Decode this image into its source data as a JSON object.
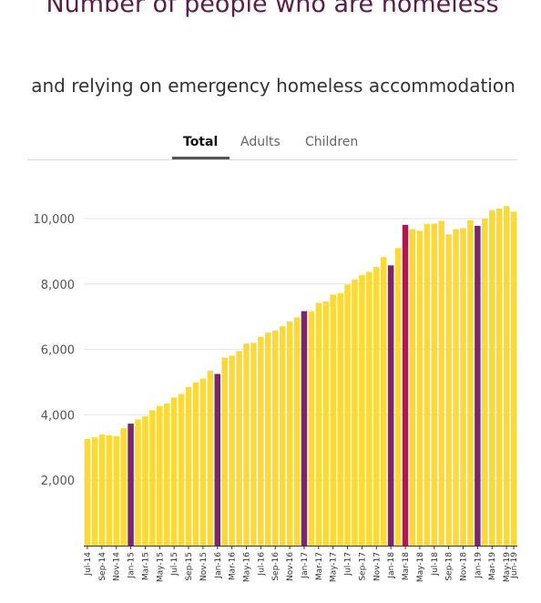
{
  "title": "Number of people who are homeless",
  "subtitle": "and relying on emergency homeless accommodation",
  "tabs": [
    {
      "label": "Total",
      "active": true
    },
    {
      "label": "Adults",
      "active": false
    },
    {
      "label": "Children",
      "active": false
    }
  ],
  "colors": {
    "bar": "#fcd935",
    "highlight": "#7b2669",
    "highlight_alt": "#b0194e",
    "title": "#5a1e48"
  },
  "chart_data": {
    "type": "bar",
    "title": "Number of people who are homeless",
    "subtitle": "and relying on emergency homeless accommodation",
    "ylim": [
      0,
      10800
    ],
    "yticks": [
      2000,
      4000,
      6000,
      8000,
      10000
    ],
    "ytick_labels": [
      "2,000",
      "4,000",
      "6,000",
      "8,000",
      "10,000"
    ],
    "grid": true,
    "categories": [
      "Jul-14",
      "Aug-14",
      "Sep-14",
      "Oct-14",
      "Nov-14",
      "Dec-14",
      "Jan-15",
      "Feb-15",
      "Mar-15",
      "Apr-15",
      "May-15",
      "Jun-15",
      "Jul-15",
      "Aug-15",
      "Sep-15",
      "Oct-15",
      "Nov-15",
      "Dec-15",
      "Jan-16",
      "Feb-16",
      "Mar-16",
      "Apr-16",
      "May-16",
      "Jun-16",
      "Jul-16",
      "Aug-16",
      "Sep-16",
      "Oct-16",
      "Nov-16",
      "Dec-16",
      "Jan-17",
      "Feb-17",
      "Mar-17",
      "Apr-17",
      "May-17",
      "Jun-17",
      "Jul-17",
      "Aug-17",
      "Sep-17",
      "Oct-17",
      "Nov-17",
      "Dec-17",
      "Jan-18",
      "Feb-18",
      "Mar-18",
      "Apr-18",
      "May-18",
      "Jun-18",
      "Jul-18",
      "Aug-18",
      "Sep-18",
      "Oct-18",
      "Nov-18",
      "Dec-18",
      "Jan-19",
      "Feb-19",
      "Mar-19",
      "Apr-19",
      "May-19",
      "Jun-19"
    ],
    "tick_labels_shown": [
      "Jul-14",
      "Sep-14",
      "Nov-14",
      "Jan-15",
      "Mar-15",
      "May-15",
      "Jul-15",
      "Sep-15",
      "Nov-15",
      "Jan-16",
      "Mar-16",
      "May-16",
      "Jul-16",
      "Sep-16",
      "Nov-16",
      "Jan-17",
      "Mar-17",
      "May-17",
      "Jul-17",
      "Sep-17",
      "Nov-17",
      "Jan-18",
      "Mar-18",
      "May-18",
      "Jul-18",
      "Sep-18",
      "Nov-18",
      "Jan-19",
      "Mar-19",
      "May-19",
      "Jun-19"
    ],
    "values": [
      3260,
      3310,
      3400,
      3370,
      3350,
      3590,
      3730,
      3860,
      3960,
      4140,
      4270,
      4350,
      4530,
      4640,
      4850,
      4990,
      5110,
      5350,
      5250,
      5750,
      5810,
      5950,
      6180,
      6200,
      6380,
      6520,
      6580,
      6710,
      6850,
      6980,
      7170,
      7170,
      7420,
      7470,
      7680,
      7720,
      7980,
      8140,
      8270,
      8370,
      8520,
      8820,
      8570,
      9100,
      9810,
      9680,
      9630,
      9840,
      9850,
      9930,
      9520,
      9680,
      9710,
      9950,
      9780,
      10000,
      10260,
      10310,
      10380,
      10210
    ],
    "highlighted": [
      "Jan-15",
      "Jan-16",
      "Jan-17",
      "Jan-18",
      "Mar-18",
      "Jan-19"
    ]
  }
}
